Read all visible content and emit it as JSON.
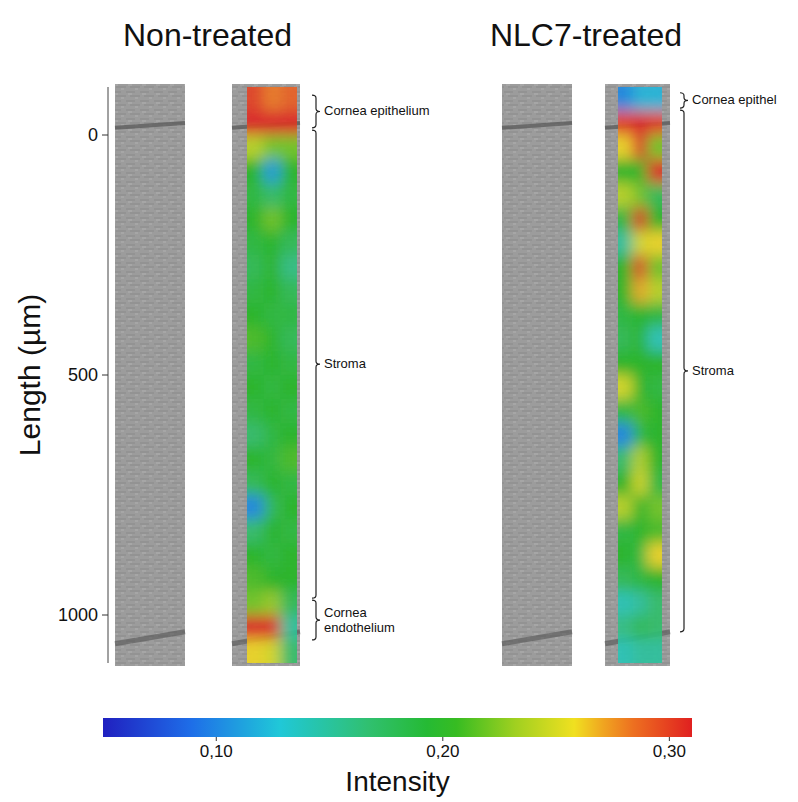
{
  "chart_data": {
    "type": "heatmap",
    "y_label": "Length (µm)",
    "ylim": [
      -100,
      1100
    ],
    "yticks": [
      0,
      500,
      1000
    ],
    "colorbar": {
      "label": "Intensity",
      "range": [
        0.05,
        0.31
      ],
      "ticks": [
        {
          "value": 0.1,
          "label": "0,10"
        },
        {
          "value": 0.2,
          "label": "0,20"
        },
        {
          "value": 0.3,
          "label": "0,30"
        }
      ]
    },
    "panels": [
      {
        "title": "Non-treated",
        "regions": [
          {
            "label": "Cornea epithelium",
            "range": [
              -83,
              -15
            ]
          },
          {
            "label": "Stroma",
            "range": [
              -10,
              965
            ]
          },
          {
            "label": "Cornea endothelium",
            "range": [
              969,
              1052
            ]
          }
        ],
        "cells": [
          [
            0.3,
            0.28,
            0.29
          ],
          [
            0.33,
            0.32,
            0.31
          ],
          [
            0.24,
            0.22,
            0.22
          ],
          [
            0.2,
            0.11,
            0.2
          ],
          [
            0.19,
            0.17,
            0.19
          ],
          [
            0.2,
            0.22,
            0.2
          ],
          [
            0.19,
            0.2,
            0.18
          ],
          [
            0.18,
            0.2,
            0.16
          ],
          [
            0.19,
            0.2,
            0.18
          ],
          [
            0.2,
            0.19,
            0.19
          ],
          [
            0.21,
            0.2,
            0.18
          ],
          [
            0.19,
            0.2,
            0.19
          ],
          [
            0.2,
            0.19,
            0.2
          ],
          [
            0.19,
            0.2,
            0.19
          ],
          [
            0.17,
            0.19,
            0.2
          ],
          [
            0.2,
            0.19,
            0.21
          ],
          [
            0.18,
            0.2,
            0.19
          ],
          [
            0.1,
            0.18,
            0.2
          ],
          [
            0.17,
            0.2,
            0.19
          ],
          [
            0.2,
            0.19,
            0.2
          ],
          [
            0.21,
            0.2,
            0.2
          ],
          [
            0.22,
            0.23,
            0.18
          ],
          [
            0.33,
            0.31,
            0.15
          ],
          [
            0.26,
            0.25,
            0.17
          ]
        ]
      },
      {
        "title": "NLC7-treated",
        "regions": [
          {
            "label": "Cornea epithel",
            "range": [
              -88,
              -56
            ]
          },
          {
            "label": "Stroma",
            "range": [
              -52,
              1035
            ]
          }
        ],
        "cells": [
          [
            0.1,
            0.12,
            0.12
          ],
          [
            0.3,
            0.33,
            0.3
          ],
          [
            0.26,
            0.33,
            0.22
          ],
          [
            0.2,
            0.2,
            0.31
          ],
          [
            0.24,
            0.22,
            0.18
          ],
          [
            0.19,
            0.32,
            0.2
          ],
          [
            0.15,
            0.25,
            0.26
          ],
          [
            0.2,
            0.3,
            0.22
          ],
          [
            0.2,
            0.27,
            0.24
          ],
          [
            0.19,
            0.2,
            0.19
          ],
          [
            0.18,
            0.2,
            0.14
          ],
          [
            0.2,
            0.2,
            0.2
          ],
          [
            0.25,
            0.2,
            0.19
          ],
          [
            0.19,
            0.21,
            0.2
          ],
          [
            0.1,
            0.19,
            0.2
          ],
          [
            0.17,
            0.24,
            0.2
          ],
          [
            0.2,
            0.25,
            0.19
          ],
          [
            0.24,
            0.2,
            0.22
          ],
          [
            0.19,
            0.2,
            0.21
          ],
          [
            0.2,
            0.19,
            0.26
          ],
          [
            0.18,
            0.19,
            0.2
          ],
          [
            0.14,
            0.15,
            0.17
          ],
          [
            0.16,
            0.18,
            0.17
          ],
          [
            0.14,
            0.15,
            0.15
          ]
        ]
      }
    ]
  }
}
